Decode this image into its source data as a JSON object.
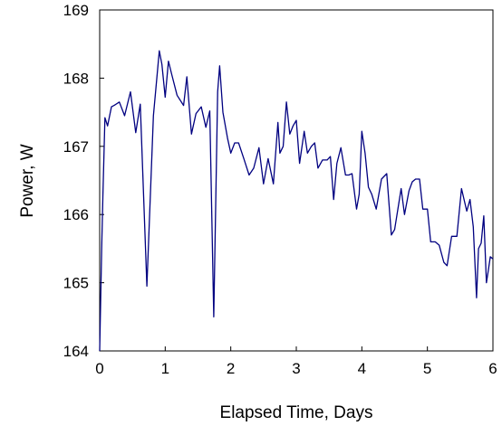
{
  "chart_data": {
    "type": "line",
    "title": "",
    "xlabel": "Elapsed Time, Days",
    "ylabel": "Power, W",
    "xlim": [
      0,
      6
    ],
    "ylim": [
      164,
      169
    ],
    "xticks": [
      0,
      1,
      2,
      3,
      4,
      5,
      6
    ],
    "yticks": [
      164,
      165,
      166,
      167,
      168,
      169
    ],
    "xtick_labels": [
      "0",
      "1",
      "2",
      "3",
      "4",
      "5",
      "6"
    ],
    "ytick_labels": [
      "164",
      "165",
      "166",
      "167",
      "168",
      "169"
    ],
    "grid": false,
    "legend": "none",
    "line_color": "#000080",
    "series": [
      {
        "x": [
          0.0,
          0.03,
          0.05,
          0.08,
          0.12,
          0.18,
          0.22,
          0.3,
          0.38,
          0.47,
          0.55,
          0.62,
          0.72,
          0.82,
          0.91,
          0.95,
          1.0,
          1.05,
          1.1,
          1.18,
          1.28,
          1.33,
          1.4,
          1.47,
          1.55,
          1.62,
          1.68,
          1.74,
          1.8,
          1.83,
          1.88,
          1.95,
          2.0,
          2.06,
          2.12,
          2.2,
          2.28,
          2.35,
          2.43,
          2.5,
          2.57,
          2.65,
          2.72,
          2.75,
          2.8,
          2.85,
          2.9,
          2.95,
          3.0,
          3.05,
          3.12,
          3.17,
          3.23,
          3.28,
          3.33,
          3.4,
          3.47,
          3.52,
          3.57,
          3.62,
          3.68,
          3.75,
          3.8,
          3.85,
          3.92,
          3.96,
          4.0,
          4.05,
          4.1,
          4.15,
          4.22,
          4.3,
          4.38,
          4.45,
          4.5,
          4.6,
          4.65,
          4.72,
          4.77,
          4.82,
          4.88,
          4.93,
          5.0,
          5.05,
          5.12,
          5.18,
          5.25,
          5.3,
          5.37,
          5.45,
          5.52,
          5.6,
          5.65,
          5.7,
          5.75,
          5.78,
          5.82,
          5.86,
          5.9,
          5.93,
          5.96,
          6.0
        ],
        "values": [
          164.0,
          165.5,
          166.3,
          167.42,
          167.3,
          167.58,
          167.6,
          167.65,
          167.45,
          167.8,
          167.2,
          167.62,
          164.95,
          167.45,
          168.4,
          168.2,
          167.72,
          168.25,
          168.05,
          167.75,
          167.6,
          168.02,
          167.18,
          167.48,
          167.58,
          167.28,
          167.52,
          164.5,
          167.8,
          168.18,
          167.5,
          167.12,
          166.9,
          167.05,
          167.05,
          166.82,
          166.58,
          166.68,
          166.98,
          166.45,
          166.82,
          166.45,
          167.35,
          166.9,
          167.0,
          167.65,
          167.18,
          167.3,
          167.38,
          166.75,
          167.22,
          166.9,
          167.0,
          167.05,
          166.68,
          166.8,
          166.8,
          166.85,
          166.22,
          166.75,
          166.98,
          166.58,
          166.58,
          166.6,
          166.08,
          166.3,
          167.22,
          166.9,
          166.4,
          166.3,
          166.08,
          166.52,
          166.6,
          165.7,
          165.78,
          166.38,
          166.0,
          166.35,
          166.48,
          166.52,
          166.52,
          166.08,
          166.08,
          165.6,
          165.6,
          165.55,
          165.3,
          165.25,
          165.68,
          165.68,
          166.38,
          166.05,
          166.22,
          165.82,
          164.78,
          165.5,
          165.58,
          165.98,
          165.0,
          165.18,
          165.38,
          165.35
        ]
      }
    ]
  }
}
